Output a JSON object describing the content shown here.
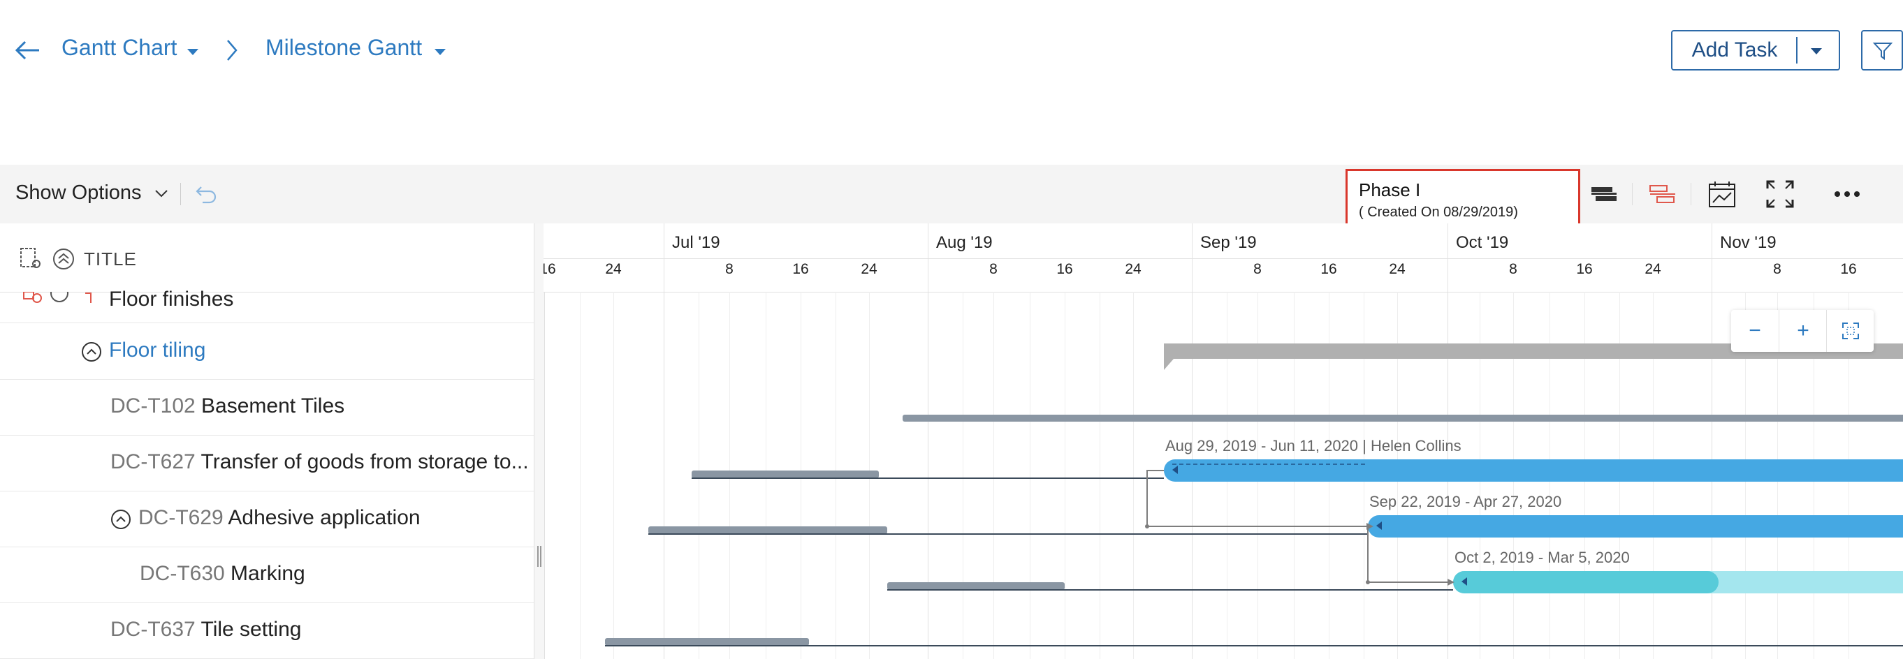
{
  "header": {
    "crumb1": "Gantt Chart",
    "crumb2": "Milestone Gantt",
    "add_task": "Add Task"
  },
  "toolbar": {
    "show_options": "Show Options",
    "phase_title": "Phase I",
    "phase_sub": "( Created On 08/29/2019)"
  },
  "grid": {
    "column_title": "TITLE",
    "rows": [
      {
        "id": "",
        "label": "Floor finishes"
      },
      {
        "id": "",
        "label": "Floor tiling"
      },
      {
        "id": "DC-T102",
        "label": "Basement Tiles"
      },
      {
        "id": "DC-T627",
        "label": "Transfer of goods from storage to..."
      },
      {
        "id": "DC-T629",
        "label": "Adhesive application"
      },
      {
        "id": "DC-T630",
        "label": "Marking"
      },
      {
        "id": "DC-T637",
        "label": "Tile setting"
      }
    ]
  },
  "timeline": {
    "months": [
      "Jul '19",
      "Aug '19",
      "Sep '19",
      "Oct '19",
      "Nov '19"
    ],
    "days": [
      "16",
      "24",
      "8",
      "16",
      "24",
      "8",
      "16",
      "24",
      "8",
      "16",
      "24",
      "8",
      "16",
      "24",
      "8",
      "16"
    ],
    "bar_labels": [
      "Aug 29, 2019 - Jun 11, 2020 | Helen Collins",
      "Sep 22, 2019 - Apr 27, 2020",
      "Oct 2, 2019 - Mar 5, 2020"
    ],
    "zoom": {
      "minus": "−",
      "plus": "+"
    }
  },
  "colors": {
    "accent": "#2d7ac0",
    "bar_blue": "#45a8e3",
    "bar_teal": "#57cbd9",
    "bar_teal_light": "#a4e6ee",
    "baseline_gray": "#8a96a3",
    "summary_gray": "#b0b0b0",
    "highlight_red": "#d9372c"
  }
}
